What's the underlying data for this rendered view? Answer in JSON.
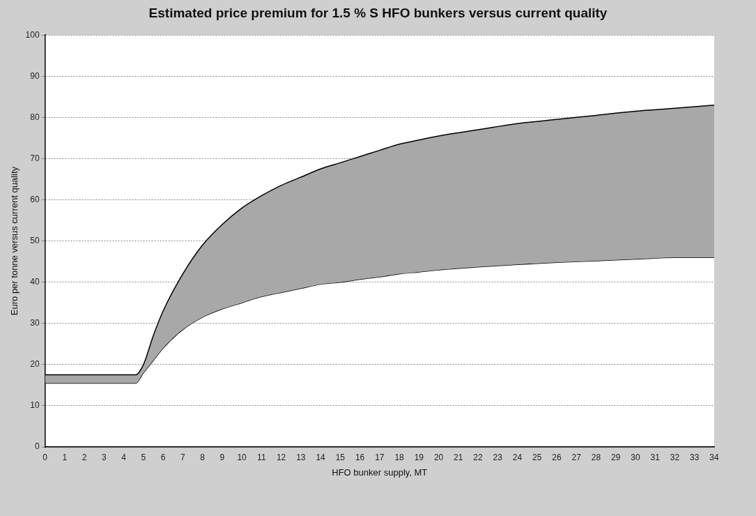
{
  "chart_data": {
    "type": "line",
    "title": "Estimated price premium for 1.5 % S HFO bunkers versus current quality",
    "xlabel": "HFO bunker supply, MT",
    "ylabel": "Euro per tonne versus current quality",
    "x": [
      0,
      4.6,
      5,
      5.5,
      6,
      7,
      8,
      9,
      10,
      11,
      12,
      13,
      14,
      15,
      16,
      17,
      18,
      19,
      20,
      22,
      24,
      26,
      28,
      30,
      32,
      34
    ],
    "series": [
      {
        "color": "#000000",
        "values": [
          15.5,
          15.5,
          18,
          21,
          24,
          28.5,
          31.5,
          33.5,
          35,
          36.5,
          37.5,
          38.5,
          39.5,
          40,
          40.7,
          41.3,
          42,
          42.5,
          43,
          43.7,
          44.3,
          44.8,
          45.2,
          45.6,
          46,
          46
        ]
      },
      {
        "type": "area",
        "color": "#a8a8a8",
        "values": [
          17.5,
          17.5,
          20,
          27,
          33,
          42,
          49,
          54,
          58,
          61,
          63.5,
          65.5,
          67.5,
          69,
          70.5,
          72,
          73.5,
          74.5,
          75.5,
          77,
          78.5,
          79.5,
          80.5,
          81.5,
          82.2,
          83
        ]
      }
    ],
    "xlim": [
      0,
      34
    ],
    "xticks": [
      0,
      1,
      2,
      3,
      4,
      5,
      6,
      7,
      8,
      9,
      10,
      11,
      12,
      13,
      14,
      15,
      16,
      17,
      18,
      19,
      20,
      21,
      22,
      23,
      24,
      25,
      26,
      27,
      28,
      29,
      30,
      31,
      32,
      33,
      34
    ],
    "ylim": [
      0,
      100
    ],
    "yticks": [
      0,
      10,
      20,
      30,
      40,
      50,
      60,
      70,
      80,
      90,
      100
    ],
    "grid": "y",
    "legend": false,
    "marker": "none",
    "line_style": "solid"
  }
}
